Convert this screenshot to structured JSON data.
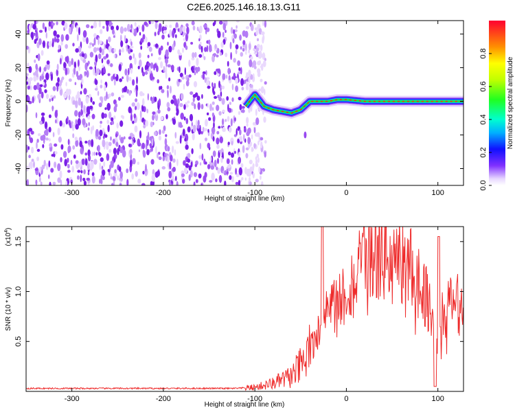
{
  "title": "C2E6.2025.146.18.13.G11",
  "colors": {
    "snr_line": "#ee2b2b",
    "noise_dot": "#7a20e6",
    "ridge": "#ff2020",
    "background": "#ffffff"
  },
  "chart_data": [
    {
      "type": "heatmap",
      "xlabel": "Height of straight line (km)",
      "ylabel": "Frequency (Hz)",
      "xlim": [
        -350,
        128
      ],
      "ylim": [
        -50,
        48
      ],
      "xticks": [
        -300,
        -200,
        -100,
        0,
        100
      ],
      "xtick_labels": [
        "-300",
        "-200",
        "-100",
        "0",
        "100"
      ],
      "yticks": [
        -40,
        -20,
        0,
        20,
        40
      ],
      "ytick_labels": [
        "-40",
        "-20",
        "0",
        "20",
        "40"
      ],
      "colorbar": {
        "label": "Normalized spectral amplitude",
        "range": [
          0,
          1
        ],
        "ticks": [
          0.0,
          0.2,
          0.4,
          0.6,
          0.8
        ],
        "tick_labels": [
          "0.0",
          "0.2",
          "0.4",
          "0.6",
          "0.8"
        ],
        "colormap": "rainbow"
      },
      "noise_region_x": [
        -350,
        -100
      ],
      "ridge": {
        "x": [
          -110,
          -100,
          -90,
          -80,
          -70,
          -60,
          -50,
          -40,
          -30,
          -20,
          -10,
          0,
          20,
          40,
          60,
          80,
          90,
          100,
          128
        ],
        "y": [
          -3,
          4,
          -3,
          -5,
          -6,
          -7,
          -5,
          0,
          0,
          0,
          1,
          1,
          0,
          0,
          0,
          0,
          0,
          0,
          0
        ]
      }
    },
    {
      "type": "line",
      "xlabel": "Height of straight line (km)",
      "ylabel": "SNR (10 * v/v)",
      "scale_label": "(x10",
      "scale_exponent": "4",
      "xlim": [
        -350,
        128
      ],
      "ylim": [
        0,
        16500
      ],
      "xticks": [
        -300,
        -200,
        -100,
        0,
        100
      ],
      "xtick_labels": [
        "-300",
        "-200",
        "-100",
        "0",
        "100"
      ],
      "yticks": [
        5000,
        10000,
        15000
      ],
      "ytick_labels": [
        "0.5",
        "1.0",
        "1.5"
      ],
      "envelope": {
        "x": [
          -350,
          -120,
          -100,
          -80,
          -60,
          -45,
          -35,
          -28,
          -25,
          -20,
          -10,
          0,
          10,
          20,
          30,
          40,
          50,
          60,
          70,
          80,
          90,
          95,
          100,
          105,
          110,
          120,
          128
        ],
        "y": [
          300,
          300,
          400,
          800,
          1500,
          3000,
          5000,
          7500,
          9000,
          8000,
          9000,
          10000,
          11500,
          12800,
          13500,
          13500,
          13500,
          13000,
          12500,
          11000,
          9000,
          7000,
          4000,
          7500,
          8500,
          9000,
          7800
        ]
      }
    }
  ]
}
